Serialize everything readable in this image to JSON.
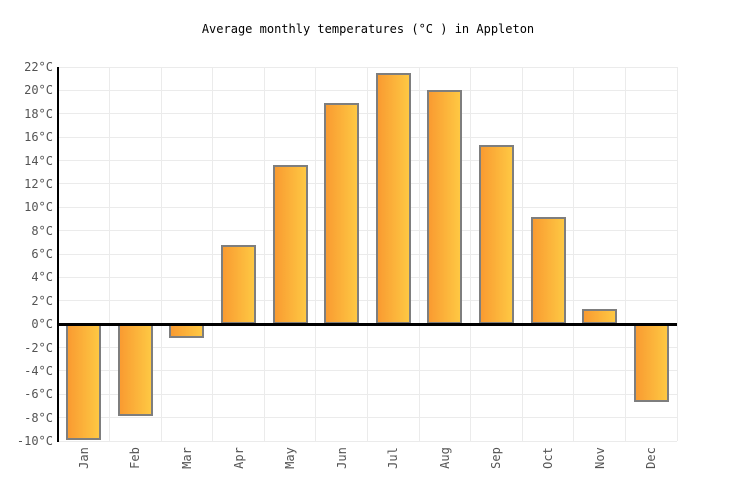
{
  "chart_data": {
    "type": "bar",
    "title": "Average monthly temperatures (°C ) in Appleton",
    "categories": [
      "Jan",
      "Feb",
      "Mar",
      "Apr",
      "May",
      "Jun",
      "Jul",
      "Aug",
      "Sep",
      "Oct",
      "Nov",
      "Dec"
    ],
    "values": [
      -9.9,
      -7.9,
      -1.2,
      6.8,
      13.6,
      18.9,
      21.5,
      20.0,
      15.3,
      9.2,
      1.3,
      -6.7
    ],
    "xlabel": "",
    "ylabel": "",
    "unit": "°C",
    "ylim": [
      -10,
      22
    ],
    "ytick_step": 2,
    "grid": true,
    "legend_position": "none",
    "colors": {
      "bar_gradient_left": "#f99b31",
      "bar_gradient_right": "#fec843",
      "bar_border": "#7e7e7e",
      "grid_line": "#ebebeb",
      "axis_line": "#000000",
      "tick_label": "#545454",
      "title_text": "#000000",
      "background": "#ffffff"
    }
  }
}
